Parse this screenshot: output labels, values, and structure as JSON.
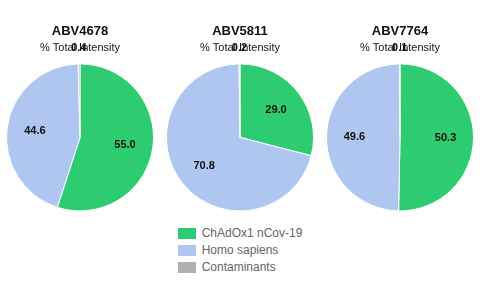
{
  "chart_data": [
    {
      "type": "pie",
      "title": "ABV4678",
      "subtitle": "% Total Intensity",
      "categories": [
        "ChAdOx1 nCov-19",
        "Homo sapiens",
        "Contaminants"
      ],
      "values": [
        55.0,
        44.6,
        0.4
      ],
      "value_labels": [
        "55.0",
        "44.6",
        "0.4"
      ],
      "colors": [
        "#2ecc71",
        "#aec6f0",
        "#b0b0b0"
      ],
      "data_labels": true
    },
    {
      "type": "pie",
      "title": "ABV5811",
      "subtitle": "% Total Intensity",
      "categories": [
        "ChAdOx1 nCov-19",
        "Homo sapiens",
        "Contaminants"
      ],
      "values": [
        29.0,
        70.8,
        0.2
      ],
      "value_labels": [
        "29.0",
        "70.8",
        "0.2"
      ],
      "colors": [
        "#2ecc71",
        "#aec6f0",
        "#b0b0b0"
      ],
      "data_labels": true,
      "legend": "bottom"
    },
    {
      "type": "pie",
      "title": "ABV7764",
      "subtitle": "% Total Intensity",
      "categories": [
        "ChAdOx1 nCov-19",
        "Homo sapiens",
        "Contaminants"
      ],
      "values": [
        50.3,
        49.6,
        0.1
      ],
      "value_labels": [
        "50.3",
        "49.6",
        "0.1"
      ],
      "colors": [
        "#2ecc71",
        "#aec6f0",
        "#b0b0b0"
      ],
      "data_labels": true
    }
  ]
}
